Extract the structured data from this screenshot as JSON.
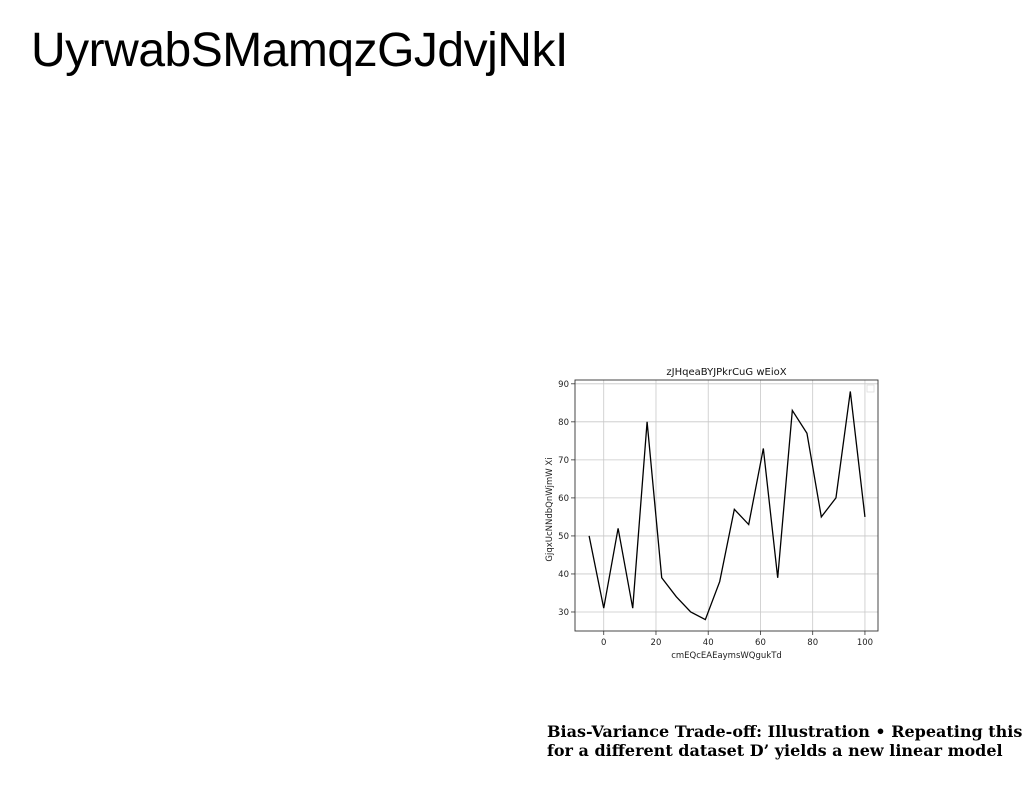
{
  "slide": {
    "title": "UyrwabSMamqzGJdvjNkI",
    "caption_line1": "Bias-Variance Trade-off: Illustration • Repeating this",
    "caption_line2": "for a different dataset D’ yields a new linear model"
  },
  "chart_data": {
    "type": "line",
    "title": "zJHqeaBYJPkrCuG wEioX",
    "xlabel": "cmEQcEAEaymsWQgukTd",
    "ylabel": "GjqxUcNNdbQnWjmW Xi",
    "xlim": [
      -11,
      105
    ],
    "ylim": [
      25,
      91
    ],
    "xticks": [
      0,
      20,
      40,
      60,
      80,
      100
    ],
    "yticks": [
      30,
      40,
      50,
      60,
      70,
      80,
      90
    ],
    "grid": true,
    "legend": "top-right (empty)",
    "line_color": "#000000",
    "series": [
      {
        "x": [
          -5.6,
          0,
          5.5,
          11.1,
          16.6,
          22.2,
          27.8,
          33.3,
          38.9,
          44.4,
          50,
          55.5,
          61.1,
          66.6,
          72.2,
          77.8,
          83.3,
          88.9,
          94.4,
          100
        ],
        "y": [
          50,
          31,
          52,
          31,
          80,
          39,
          34,
          30,
          28,
          38,
          57,
          53,
          73,
          39,
          83,
          77,
          55,
          60,
          88,
          55
        ]
      }
    ]
  }
}
